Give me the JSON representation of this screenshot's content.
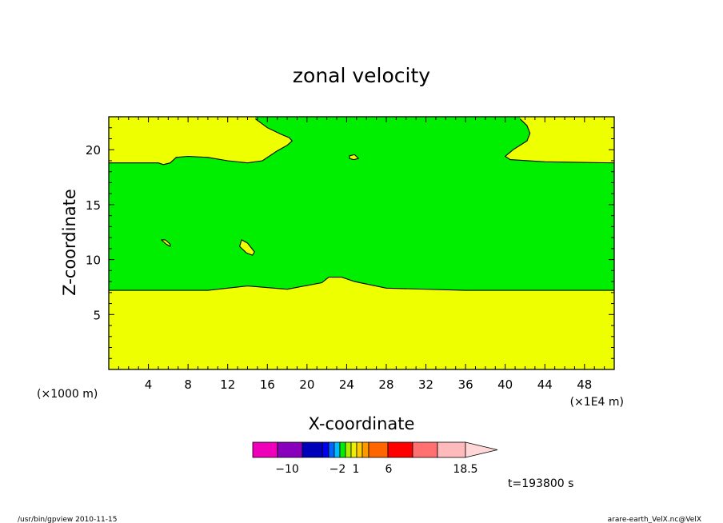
{
  "chart_data": {
    "type": "contour",
    "title": "zonal velocity",
    "xlabel": "X-coordinate",
    "ylabel": "Z-coordinate",
    "x_unit_left": "(×1000 m)",
    "x_unit_right": "(×1E4 m)",
    "xlim": [
      0,
      51
    ],
    "ylim": [
      0,
      23
    ],
    "xticks": [
      4,
      8,
      12,
      16,
      20,
      24,
      28,
      32,
      36,
      40,
      44,
      48
    ],
    "yticks": [
      5,
      10,
      15,
      20
    ],
    "grid": false,
    "fill_colors": {
      "low": "#00ee00",
      "high": "#eeff00"
    },
    "regions": [
      {
        "name": "lower",
        "color_key": "high",
        "boundary": [
          [
            0,
            7.2
          ],
          [
            10,
            7.2
          ],
          [
            14,
            7.6
          ],
          [
            18,
            7.3
          ],
          [
            21.5,
            7.9
          ],
          [
            22.2,
            8.4
          ],
          [
            23.5,
            8.4
          ],
          [
            24.8,
            8.0
          ],
          [
            28,
            7.4
          ],
          [
            36,
            7.2
          ],
          [
            51,
            7.2
          ]
        ]
      },
      {
        "name": "upper-left",
        "color_key": "high",
        "boundary": [
          [
            0,
            18.8
          ],
          [
            5,
            18.8
          ],
          [
            5.5,
            18.65
          ],
          [
            6.2,
            18.8
          ],
          [
            6.8,
            19.3
          ],
          [
            8,
            19.4
          ],
          [
            10,
            19.3
          ],
          [
            12,
            19.0
          ],
          [
            14,
            18.8
          ],
          [
            15.5,
            19.0
          ],
          [
            17,
            19.9
          ],
          [
            18,
            20.4
          ],
          [
            18.5,
            20.8
          ],
          [
            18.2,
            21.1
          ],
          [
            17.4,
            21.4
          ],
          [
            16,
            22
          ],
          [
            14.8,
            22.8
          ]
        ]
      },
      {
        "name": "upper-right",
        "color_key": "high",
        "boundary": [
          [
            51,
            18.8
          ],
          [
            44,
            18.9
          ],
          [
            40.5,
            19.1
          ],
          [
            40,
            19.4
          ],
          [
            40.8,
            20.0
          ],
          [
            42.2,
            20.8
          ],
          [
            42.5,
            21.5
          ],
          [
            42.2,
            22.2
          ],
          [
            41.5,
            22.8
          ]
        ]
      }
    ],
    "islands": [
      {
        "color_key": "high",
        "points": [
          [
            24.3,
            19.2
          ],
          [
            24.7,
            19.1
          ],
          [
            25.2,
            19.2
          ],
          [
            24.8,
            19.55
          ],
          [
            24.3,
            19.45
          ]
        ]
      },
      {
        "color_key": "high",
        "points": [
          [
            5.3,
            11.8
          ],
          [
            5.7,
            11.8
          ],
          [
            6.2,
            11.4
          ],
          [
            6.2,
            11.2
          ],
          [
            5.8,
            11.4
          ]
        ]
      },
      {
        "color_key": "high",
        "points": [
          [
            13.2,
            11.2
          ],
          [
            13.4,
            11.8
          ],
          [
            14.0,
            11.5
          ],
          [
            14.7,
            10.7
          ],
          [
            14.5,
            10.4
          ],
          [
            13.9,
            10.6
          ]
        ]
      }
    ],
    "colorbar": {
      "colors": [
        "#ee00bb",
        "#8800bb",
        "#0000bb",
        "#0000ee",
        "#0066ff",
        "#00bbff",
        "#00ee00",
        "#aaee00",
        "#eeee00",
        "#ffcc00",
        "#ff9900",
        "#ff6600",
        "#ff0000",
        "#ff7070",
        "#ffbbbb",
        "#ffd7d7"
      ],
      "labels": [
        "−10",
        "−2",
        "1",
        "6",
        "18.5"
      ],
      "label_positions": [
        -10,
        -2,
        1,
        6,
        18.5
      ]
    },
    "annotation": "t=193800 s"
  },
  "footer": {
    "left": "/usr/bin/gpview   2010-11-15",
    "right": "arare-earth_VelX.nc@VelX"
  }
}
